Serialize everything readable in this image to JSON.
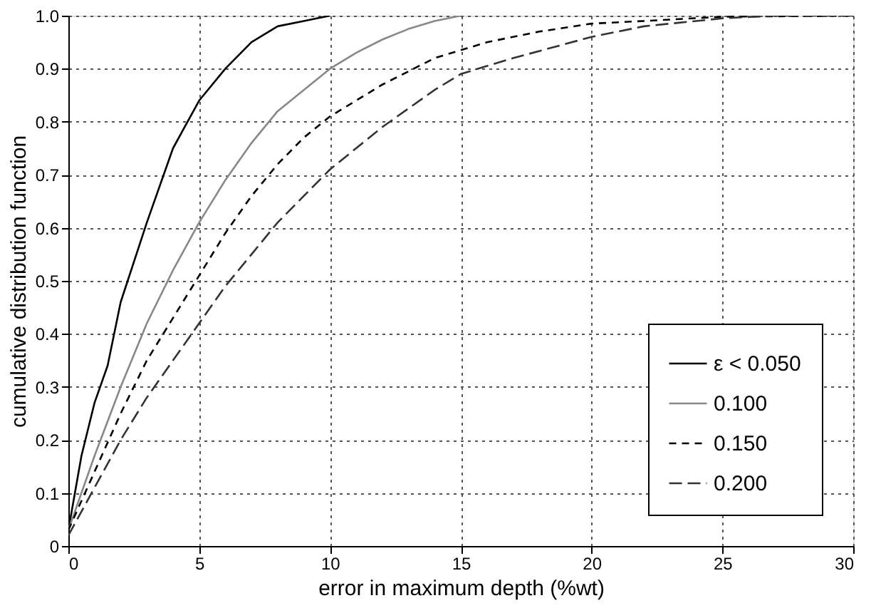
{
  "chart_data": {
    "type": "line",
    "xlabel": "error in maximum depth (%wt)",
    "ylabel": "cumulative distribution function",
    "xlim": [
      0,
      30
    ],
    "xticks": [
      0,
      5,
      10,
      15,
      20,
      25,
      30
    ],
    "ylim": [
      0,
      1
    ],
    "yticks": [
      0,
      0.1,
      0.2,
      0.3,
      0.4,
      0.5,
      0.6,
      0.7,
      0.8,
      0.9,
      {
        "value": 1,
        "label": "1.0"
      }
    ],
    "grid": true,
    "legend": "bottom right",
    "series": [
      {
        "name": "ε < 0.050",
        "color": "#000000",
        "line_style": "solid",
        "x": [
          0,
          0.5,
          1,
          1.5,
          2,
          3,
          4,
          5,
          6,
          7,
          8,
          9,
          10
        ],
        "values": [
          0.03,
          0.17,
          0.27,
          0.34,
          0.46,
          0.61,
          0.75,
          0.84,
          0.9,
          0.95,
          0.98,
          0.99,
          1.0
        ]
      },
      {
        "name": "0.100",
        "color": "#888888",
        "line_style": "solid",
        "x": [
          0,
          1,
          2,
          3,
          4,
          5,
          6,
          7,
          8,
          9,
          10,
          11,
          12,
          13,
          14,
          15
        ],
        "values": [
          0.03,
          0.17,
          0.3,
          0.42,
          0.52,
          0.61,
          0.69,
          0.76,
          0.82,
          0.86,
          0.9,
          0.93,
          0.955,
          0.975,
          0.99,
          1.0
        ]
      },
      {
        "name": "0.150",
        "color": "#000000",
        "line_style": "dashed",
        "x": [
          0,
          1,
          2,
          3,
          4,
          5,
          6,
          7,
          8,
          9,
          10,
          12,
          14,
          16,
          18,
          20,
          22,
          25,
          30
        ],
        "values": [
          0.03,
          0.14,
          0.25,
          0.35,
          0.43,
          0.51,
          0.59,
          0.66,
          0.72,
          0.77,
          0.81,
          0.87,
          0.92,
          0.95,
          0.97,
          0.985,
          0.99,
          0.998,
          1.0
        ]
      },
      {
        "name": "0.200",
        "color": "#333333",
        "line_style": "longdash",
        "x": [
          0,
          1,
          2,
          3,
          4,
          5,
          6,
          7,
          8,
          9,
          10,
          12,
          14,
          15,
          17,
          20,
          22,
          25,
          27,
          30
        ],
        "values": [
          0.02,
          0.11,
          0.2,
          0.28,
          0.35,
          0.42,
          0.49,
          0.55,
          0.61,
          0.66,
          0.71,
          0.79,
          0.86,
          0.89,
          0.92,
          0.96,
          0.98,
          0.995,
          1.0,
          1.0
        ]
      }
    ]
  }
}
